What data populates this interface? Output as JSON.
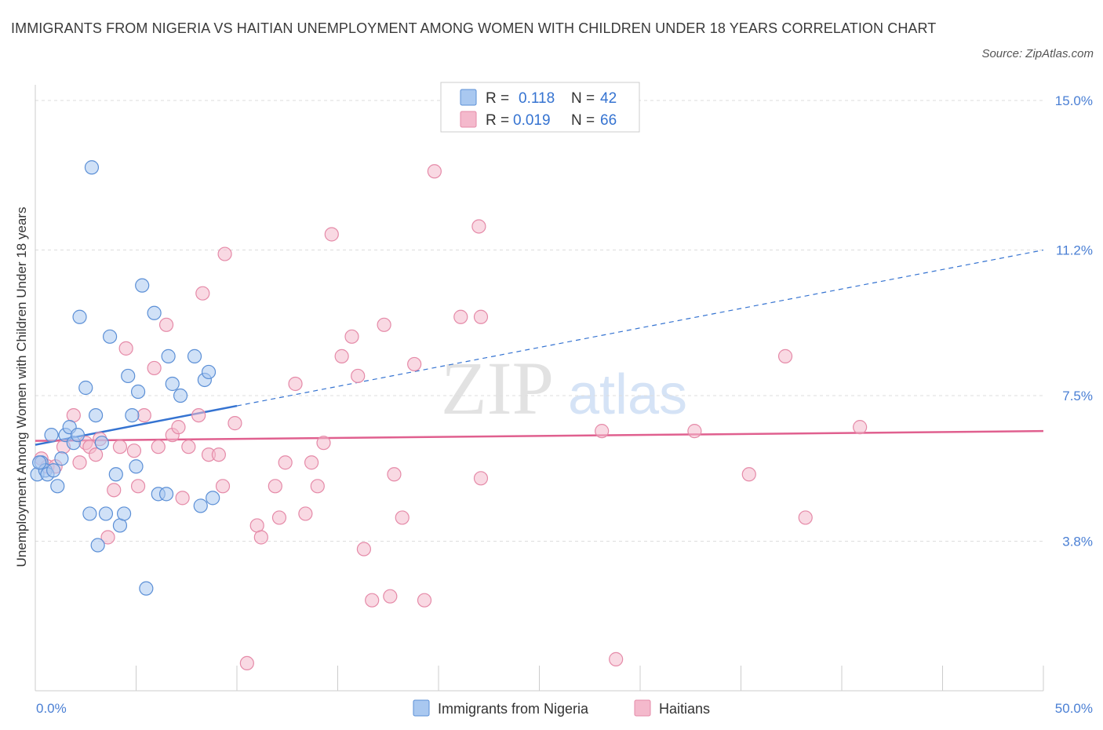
{
  "title": "IMMIGRANTS FROM NIGERIA VS HAITIAN UNEMPLOYMENT AMONG WOMEN WITH CHILDREN UNDER 18 YEARS CORRELATION CHART",
  "source": "Source: ZipAtlas.com",
  "watermark": {
    "zip": "ZIP",
    "atlas": "atlas"
  },
  "colors": {
    "nigeria_fill": "#a9c8f0",
    "nigeria_stroke": "#5b8fd6",
    "nigeria_line": "#3573d1",
    "haiti_fill": "#f4b9cc",
    "haiti_stroke": "#e58aa8",
    "haiti_line": "#e0608f",
    "tick_text": "#4a7fd4",
    "grid": "#dddddd"
  },
  "legend_stats": [
    {
      "r_label": "R =",
      "r_value": "0.118",
      "n_label": "N =",
      "n_value": "42"
    },
    {
      "r_label": "R =",
      "r_value": "0.019",
      "n_label": "N =",
      "n_value": "66"
    }
  ],
  "chart_data": {
    "type": "scatter",
    "title": "IMMIGRANTS FROM NIGERIA VS HAITIAN UNEMPLOYMENT AMONG WOMEN WITH CHILDREN UNDER 18 YEARS CORRELATION CHART",
    "xlabel": "",
    "ylabel": "Unemployment Among Women with Children Under 18 years",
    "xlim": [
      0,
      50
    ],
    "ylim": [
      0,
      15.4
    ],
    "x_tick_labels": [
      "0.0%",
      "50.0%"
    ],
    "y_ticks": [
      {
        "value": 3.8,
        "label": "3.8%"
      },
      {
        "value": 7.5,
        "label": "7.5%"
      },
      {
        "value": 11.2,
        "label": "11.2%"
      },
      {
        "value": 15.0,
        "label": "15.0%"
      }
    ],
    "grid": true,
    "legend": "bottom",
    "series": [
      {
        "name": "Immigrants from Nigeria",
        "r": 0.118,
        "n": 42,
        "trend": {
          "x0": 0,
          "y0": 6.25,
          "x1": 50,
          "y1": 11.2,
          "solid_until_x": 10
        },
        "points": [
          [
            0.1,
            5.5
          ],
          [
            0.3,
            5.8
          ],
          [
            0.5,
            5.6
          ],
          [
            0.6,
            5.5
          ],
          [
            0.8,
            6.5
          ],
          [
            0.9,
            5.6
          ],
          [
            1.1,
            5.2
          ],
          [
            1.3,
            5.9
          ],
          [
            1.5,
            6.5
          ],
          [
            1.7,
            6.7
          ],
          [
            1.9,
            6.3
          ],
          [
            2.1,
            6.5
          ],
          [
            2.2,
            9.5
          ],
          [
            2.5,
            7.7
          ],
          [
            2.7,
            4.5
          ],
          [
            2.8,
            13.3
          ],
          [
            3.0,
            7.0
          ],
          [
            3.1,
            3.7
          ],
          [
            3.3,
            6.3
          ],
          [
            3.5,
            4.5
          ],
          [
            3.7,
            9.0
          ],
          [
            4.0,
            5.5
          ],
          [
            4.2,
            4.2
          ],
          [
            4.4,
            4.5
          ],
          [
            4.6,
            8.0
          ],
          [
            4.8,
            7.0
          ],
          [
            5.0,
            5.7
          ],
          [
            5.1,
            7.6
          ],
          [
            5.3,
            10.3
          ],
          [
            5.5,
            2.6
          ],
          [
            5.9,
            9.6
          ],
          [
            6.1,
            5.0
          ],
          [
            6.5,
            5.0
          ],
          [
            6.6,
            8.5
          ],
          [
            6.8,
            7.8
          ],
          [
            7.2,
            7.5
          ],
          [
            7.9,
            8.5
          ],
          [
            8.2,
            4.7
          ],
          [
            8.4,
            7.9
          ],
          [
            8.6,
            8.1
          ],
          [
            8.8,
            4.9
          ],
          [
            0.2,
            5.8
          ]
        ]
      },
      {
        "name": "Haitians",
        "r": 0.019,
        "n": 66,
        "trend": {
          "x0": 0,
          "y0": 6.35,
          "x1": 50,
          "y1": 6.6,
          "solid_until_x": 50
        },
        "points": [
          [
            0.3,
            5.9
          ],
          [
            0.6,
            5.7
          ],
          [
            1.0,
            5.7
          ],
          [
            1.4,
            6.2
          ],
          [
            1.9,
            7.0
          ],
          [
            2.2,
            5.8
          ],
          [
            2.5,
            6.3
          ],
          [
            2.7,
            6.2
          ],
          [
            3.0,
            6.0
          ],
          [
            3.2,
            6.4
          ],
          [
            3.6,
            3.9
          ],
          [
            3.9,
            5.1
          ],
          [
            4.2,
            6.2
          ],
          [
            4.5,
            8.7
          ],
          [
            4.9,
            6.1
          ],
          [
            5.1,
            5.2
          ],
          [
            5.4,
            7.0
          ],
          [
            5.9,
            8.2
          ],
          [
            6.1,
            6.2
          ],
          [
            6.5,
            9.3
          ],
          [
            6.8,
            6.5
          ],
          [
            7.1,
            6.7
          ],
          [
            7.3,
            4.9
          ],
          [
            7.6,
            6.2
          ],
          [
            8.1,
            7.0
          ],
          [
            8.3,
            10.1
          ],
          [
            8.6,
            6.0
          ],
          [
            9.1,
            6.0
          ],
          [
            9.3,
            5.2
          ],
          [
            9.4,
            11.1
          ],
          [
            9.9,
            6.8
          ],
          [
            10.5,
            0.7
          ],
          [
            11.0,
            4.2
          ],
          [
            11.2,
            3.9
          ],
          [
            11.9,
            5.2
          ],
          [
            12.1,
            4.4
          ],
          [
            12.4,
            5.8
          ],
          [
            12.9,
            7.8
          ],
          [
            13.4,
            4.5
          ],
          [
            13.7,
            5.8
          ],
          [
            14.0,
            5.2
          ],
          [
            14.3,
            6.3
          ],
          [
            14.7,
            11.6
          ],
          [
            15.2,
            8.5
          ],
          [
            15.7,
            9.0
          ],
          [
            16.0,
            8.0
          ],
          [
            16.3,
            3.6
          ],
          [
            16.7,
            2.3
          ],
          [
            17.3,
            9.3
          ],
          [
            17.6,
            2.4
          ],
          [
            17.8,
            5.5
          ],
          [
            18.2,
            4.4
          ],
          [
            18.8,
            8.3
          ],
          [
            19.3,
            2.3
          ],
          [
            19.8,
            13.2
          ],
          [
            21.1,
            9.5
          ],
          [
            22.1,
            5.4
          ],
          [
            22.0,
            11.8
          ],
          [
            22.1,
            9.5
          ],
          [
            28.1,
            6.6
          ],
          [
            28.8,
            0.8
          ],
          [
            32.7,
            6.6
          ],
          [
            35.4,
            5.5
          ],
          [
            37.2,
            8.5
          ],
          [
            38.2,
            4.4
          ],
          [
            40.9,
            6.7
          ]
        ]
      }
    ]
  }
}
